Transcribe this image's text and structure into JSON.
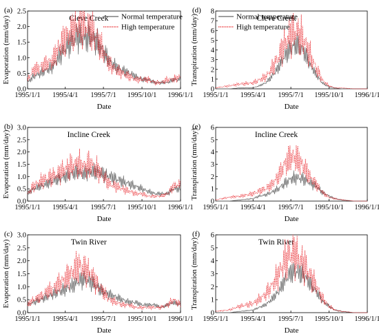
{
  "chart_data": [
    {
      "type": "line",
      "panel_label": "(a)",
      "title": "Cleve Creek",
      "xlabel": "Date",
      "ylabel": "Evaporation (mm/day)",
      "ylim": [
        0,
        2.5
      ],
      "yticks": [
        "0.0",
        "0.5",
        "1.0",
        "1.5",
        "2.0",
        "2.5"
      ],
      "xticks": [
        "1995/1/1",
        "1995/4/1",
        "1995/7/1",
        "1995/10/1",
        "1996/1/1"
      ],
      "legend": {
        "placement": "top-right"
      },
      "series": [
        {
          "name": "Normal temperature",
          "color": "#666666",
          "style": "solid",
          "x": [
            "1995/1/1",
            "1995/1/15",
            "1995/2/1",
            "1995/2/15",
            "1995/3/1",
            "1995/3/15",
            "1995/4/1",
            "1995/4/15",
            "1995/5/1",
            "1995/5/15",
            "1995/6/1",
            "1995/6/15",
            "1995/7/1",
            "1995/7/15",
            "1995/8/1",
            "1995/8/15",
            "1995/9/1",
            "1995/9/15",
            "1995/10/1",
            "1995/10/15",
            "1995/11/1",
            "1995/11/15",
            "1995/12/1",
            "1995/12/15",
            "1996/1/1"
          ],
          "y": [
            0.2,
            0.4,
            0.5,
            0.6,
            0.7,
            1.0,
            1.3,
            1.5,
            1.7,
            1.6,
            1.7,
            1.5,
            1.2,
            0.9,
            0.7,
            0.6,
            0.5,
            0.4,
            0.3,
            0.3,
            0.2,
            0.2,
            0.2,
            0.3,
            0.3
          ]
        },
        {
          "name": "High temperature",
          "color": "#e8191f",
          "style": "dotted",
          "x": [
            "1995/1/1",
            "1995/1/15",
            "1995/2/1",
            "1995/2/15",
            "1995/3/1",
            "1995/3/15",
            "1995/4/1",
            "1995/4/15",
            "1995/5/1",
            "1995/5/15",
            "1995/6/1",
            "1995/6/15",
            "1995/7/1",
            "1995/7/15",
            "1995/8/1",
            "1995/8/15",
            "1995/9/1",
            "1995/9/15",
            "1995/10/1",
            "1995/10/15",
            "1995/11/1",
            "1995/11/15",
            "1995/12/1",
            "1995/12/15",
            "1996/1/1"
          ],
          "y": [
            0.3,
            0.6,
            0.7,
            0.8,
            0.9,
            1.3,
            1.6,
            1.8,
            2.0,
            2.1,
            1.9,
            1.6,
            1.2,
            0.8,
            0.6,
            0.5,
            0.4,
            0.3,
            0.3,
            0.3,
            0.2,
            0.2,
            0.3,
            0.3,
            0.4
          ]
        }
      ]
    },
    {
      "type": "line",
      "panel_label": "(d)",
      "title": "Cleve Creek",
      "xlabel": "Date",
      "ylabel": "Transpiration (mm/day)",
      "ylim": [
        0,
        8
      ],
      "yticks": [
        "0",
        "1",
        "2",
        "3",
        "4",
        "5",
        "6",
        "7",
        "8"
      ],
      "xticks": [
        "1995/1/1",
        "1995/4/1",
        "1995/7/1",
        "1995/10/1",
        "1996/1/1"
      ],
      "legend": {
        "placement": "top-left"
      },
      "series": [
        {
          "name": "Normal temperature",
          "color": "#666666",
          "style": "solid",
          "x": [
            "1995/1/1",
            "1995/2/1",
            "1995/3/1",
            "1995/4/1",
            "1995/4/15",
            "1995/5/1",
            "1995/5/15",
            "1995/6/1",
            "1995/6/15",
            "1995/7/1",
            "1995/7/15",
            "1995/8/1",
            "1995/8/15",
            "1995/9/1",
            "1995/9/15",
            "1995/10/1",
            "1995/10/15",
            "1995/11/1",
            "1995/12/1",
            "1996/1/1"
          ],
          "y": [
            0,
            0,
            0.1,
            0.1,
            0.3,
            0.6,
            1.2,
            2.2,
            3.3,
            4.2,
            4.6,
            3.9,
            2.6,
            1.4,
            0.6,
            0.2,
            0.1,
            0,
            0,
            0
          ]
        },
        {
          "name": "High temperature",
          "color": "#e8191f",
          "style": "dotted",
          "x": [
            "1995/1/1",
            "1995/2/1",
            "1995/3/1",
            "1995/4/1",
            "1995/4/15",
            "1995/5/1",
            "1995/5/15",
            "1995/6/1",
            "1995/6/15",
            "1995/7/1",
            "1995/7/15",
            "1995/8/1",
            "1995/8/15",
            "1995/9/1",
            "1995/9/15",
            "1995/10/1",
            "1995/10/15",
            "1995/11/1",
            "1995/12/1",
            "1996/1/1"
          ],
          "y": [
            0.1,
            0.3,
            0.5,
            0.6,
            0.9,
            1.2,
            2.0,
            3.2,
            4.5,
            5.6,
            5.9,
            5.0,
            3.6,
            2.0,
            0.9,
            0.3,
            0.1,
            0.1,
            0,
            0
          ]
        }
      ]
    },
    {
      "type": "line",
      "panel_label": "(b)",
      "title": "Incline Creek",
      "xlabel": "Date",
      "ylabel": "Evaporation (mm/day)",
      "ylim": [
        0,
        3.0
      ],
      "yticks": [
        "0.0",
        "0.5",
        "1.0",
        "1.5",
        "2.0",
        "2.5",
        "3.0"
      ],
      "xticks": [
        "1995/1/1",
        "1995/4/1",
        "1995/7/1",
        "1995/10/1",
        "1996/1/1"
      ],
      "series": [
        {
          "name": "Normal temperature",
          "color": "#666666",
          "style": "solid",
          "x": [
            "1995/1/1",
            "1995/1/15",
            "1995/2/1",
            "1995/2/15",
            "1995/3/1",
            "1995/3/15",
            "1995/4/1",
            "1995/4/15",
            "1995/5/1",
            "1995/5/15",
            "1995/6/1",
            "1995/6/15",
            "1995/7/1",
            "1995/7/15",
            "1995/8/1",
            "1995/8/15",
            "1995/9/1",
            "1995/9/15",
            "1995/10/1",
            "1995/10/15",
            "1995/11/1",
            "1995/11/15",
            "1995/12/1",
            "1995/12/15",
            "1996/1/1"
          ],
          "y": [
            0.3,
            0.5,
            0.6,
            0.7,
            0.8,
            0.9,
            1.0,
            1.1,
            1.2,
            1.1,
            1.2,
            1.2,
            1.1,
            1.0,
            0.9,
            0.8,
            0.7,
            0.6,
            0.5,
            0.4,
            0.3,
            0.3,
            0.3,
            0.5,
            0.5
          ]
        },
        {
          "name": "High temperature",
          "color": "#e8191f",
          "style": "dotted",
          "x": [
            "1995/1/1",
            "1995/1/15",
            "1995/2/1",
            "1995/2/15",
            "1995/3/1",
            "1995/3/15",
            "1995/4/1",
            "1995/4/15",
            "1995/5/1",
            "1995/5/15",
            "1995/6/1",
            "1995/6/15",
            "1995/7/1",
            "1995/7/15",
            "1995/8/1",
            "1995/8/15",
            "1995/9/1",
            "1995/9/15",
            "1995/10/1",
            "1995/10/15",
            "1995/11/1",
            "1995/11/15",
            "1995/12/1",
            "1995/12/15",
            "1996/1/1"
          ],
          "y": [
            0.3,
            0.6,
            0.8,
            0.9,
            1.0,
            1.1,
            1.3,
            1.4,
            1.5,
            1.4,
            1.5,
            1.3,
            1.0,
            0.7,
            0.6,
            0.5,
            0.4,
            0.3,
            0.3,
            0.2,
            0.2,
            0.2,
            0.3,
            0.6,
            0.7
          ]
        }
      ]
    },
    {
      "type": "line",
      "panel_label": "(e)",
      "title": "Incline Creek",
      "xlabel": "Date",
      "ylabel": "Transpiration (mm/day)",
      "ylim": [
        0,
        6
      ],
      "yticks": [
        "0",
        "1",
        "2",
        "3",
        "4",
        "5",
        "6"
      ],
      "xticks": [
        "1995/1/1",
        "1995/4/1",
        "1995/7/1",
        "1995/10/1",
        "1996/1/1"
      ],
      "series": [
        {
          "name": "Normal temperature",
          "color": "#666666",
          "style": "solid",
          "x": [
            "1995/1/1",
            "1995/2/1",
            "1995/3/1",
            "1995/4/1",
            "1995/4/15",
            "1995/5/1",
            "1995/5/15",
            "1995/6/1",
            "1995/6/15",
            "1995/7/1",
            "1995/7/15",
            "1995/8/1",
            "1995/8/15",
            "1995/9/1",
            "1995/9/15",
            "1995/10/1",
            "1995/10/15",
            "1995/11/1",
            "1995/12/1",
            "1996/1/1"
          ],
          "y": [
            0,
            0,
            0.1,
            0.2,
            0.4,
            0.5,
            0.7,
            1.0,
            1.4,
            1.8,
            1.9,
            1.8,
            1.5,
            1.2,
            0.7,
            0.4,
            0.2,
            0.1,
            0,
            0
          ]
        },
        {
          "name": "High temperature",
          "color": "#e8191f",
          "style": "dotted",
          "x": [
            "1995/1/1",
            "1995/2/1",
            "1995/3/1",
            "1995/4/1",
            "1995/4/15",
            "1995/5/1",
            "1995/5/15",
            "1995/6/1",
            "1995/6/15",
            "1995/7/1",
            "1995/7/15",
            "1995/8/1",
            "1995/8/15",
            "1995/9/1",
            "1995/9/15",
            "1995/10/1",
            "1995/10/15",
            "1995/11/1",
            "1995/12/1",
            "1996/1/1"
          ],
          "y": [
            0.1,
            0.3,
            0.4,
            0.6,
            0.8,
            1.0,
            1.3,
            2.0,
            2.9,
            3.6,
            3.5,
            2.8,
            2.0,
            1.3,
            0.7,
            0.3,
            0.2,
            0.1,
            0,
            0
          ]
        }
      ]
    },
    {
      "type": "line",
      "panel_label": "(c)",
      "title": "Twin River",
      "xlabel": "Date",
      "ylabel": "Evaporation (mm/day)",
      "ylim": [
        0,
        3.0
      ],
      "yticks": [
        "0.0",
        "0.5",
        "1.0",
        "1.5",
        "2.0",
        "2.5",
        "3.0"
      ],
      "xticks": [
        "1995/1/1",
        "1995/4/1",
        "1995/7/1",
        "1995/10/1",
        "1996/1/1"
      ],
      "series": [
        {
          "name": "Normal temperature",
          "color": "#666666",
          "style": "solid",
          "x": [
            "1995/1/1",
            "1995/1/15",
            "1995/2/1",
            "1995/2/15",
            "1995/3/1",
            "1995/3/15",
            "1995/4/1",
            "1995/4/15",
            "1995/5/1",
            "1995/5/15",
            "1995/6/1",
            "1995/6/15",
            "1995/7/1",
            "1995/7/15",
            "1995/8/1",
            "1995/8/15",
            "1995/9/1",
            "1995/9/15",
            "1995/10/1",
            "1995/10/15",
            "1995/11/1",
            "1995/11/15",
            "1995/12/1",
            "1995/12/15",
            "1996/1/1"
          ],
          "y": [
            0.3,
            0.4,
            0.5,
            0.6,
            0.7,
            0.8,
            0.9,
            1.0,
            1.2,
            1.3,
            1.2,
            1.0,
            0.8,
            0.7,
            0.6,
            0.5,
            0.4,
            0.4,
            0.3,
            0.3,
            0.3,
            0.2,
            0.3,
            0.4,
            0.3
          ]
        },
        {
          "name": "High temperature",
          "color": "#e8191f",
          "style": "dotted",
          "x": [
            "1995/1/1",
            "1995/1/15",
            "1995/2/1",
            "1995/2/15",
            "1995/3/1",
            "1995/3/15",
            "1995/4/1",
            "1995/4/15",
            "1995/5/1",
            "1995/5/15",
            "1995/6/1",
            "1995/6/15",
            "1995/7/1",
            "1995/7/15",
            "1995/8/1",
            "1995/8/15",
            "1995/9/1",
            "1995/9/15",
            "1995/10/1",
            "1995/10/15",
            "1995/11/1",
            "1995/11/15",
            "1995/12/1",
            "1995/12/15",
            "1996/1/1"
          ],
          "y": [
            0.3,
            0.5,
            0.6,
            0.8,
            0.9,
            1.1,
            1.3,
            1.5,
            1.8,
            1.7,
            1.5,
            1.1,
            0.8,
            0.5,
            0.4,
            0.3,
            0.3,
            0.2,
            0.2,
            0.2,
            0.2,
            0.2,
            0.3,
            0.5,
            0.3
          ]
        }
      ]
    },
    {
      "type": "line",
      "panel_label": "(f)",
      "title": "Twin River",
      "xlabel": "Date",
      "ylabel": "Transpiration (mm/day)",
      "ylim": [
        0,
        6
      ],
      "yticks": [
        "0",
        "1",
        "2",
        "3",
        "4",
        "5",
        "6"
      ],
      "xticks": [
        "1995/1/1",
        "1995/4/1",
        "1995/7/1",
        "1995/10/1",
        "1996/1/1"
      ],
      "series": [
        {
          "name": "Normal temperature",
          "color": "#666666",
          "style": "solid",
          "x": [
            "1995/1/1",
            "1995/2/1",
            "1995/3/1",
            "1995/4/1",
            "1995/4/15",
            "1995/5/1",
            "1995/5/15",
            "1995/6/1",
            "1995/6/15",
            "1995/7/1",
            "1995/7/15",
            "1995/8/1",
            "1995/8/15",
            "1995/9/1",
            "1995/9/15",
            "1995/10/1",
            "1995/10/15",
            "1995/11/1",
            "1995/12/1",
            "1996/1/1"
          ],
          "y": [
            0,
            0,
            0.1,
            0.2,
            0.4,
            0.6,
            1.0,
            1.6,
            2.4,
            3.1,
            3.2,
            2.9,
            2.3,
            1.6,
            0.9,
            0.5,
            0.2,
            0.1,
            0,
            0
          ]
        },
        {
          "name": "High temperature",
          "color": "#e8191f",
          "style": "dotted",
          "x": [
            "1995/1/1",
            "1995/2/1",
            "1995/3/1",
            "1995/4/1",
            "1995/4/15",
            "1995/5/1",
            "1995/5/15",
            "1995/6/1",
            "1995/6/15",
            "1995/7/1",
            "1995/7/15",
            "1995/8/1",
            "1995/8/15",
            "1995/9/1",
            "1995/9/15",
            "1995/10/1",
            "1995/10/15",
            "1995/11/1",
            "1995/12/1",
            "1996/1/1"
          ],
          "y": [
            0.1,
            0.2,
            0.5,
            0.7,
            1.0,
            1.4,
            2.0,
            2.9,
            3.9,
            4.6,
            4.4,
            3.7,
            2.9,
            2.0,
            1.1,
            0.5,
            0.2,
            0.1,
            0,
            0
          ]
        }
      ]
    }
  ]
}
